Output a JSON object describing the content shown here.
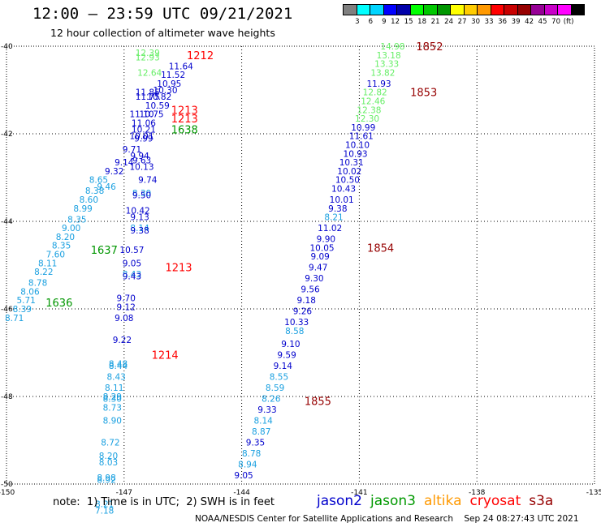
{
  "header": {
    "title": "12:00 — 23:59 UTC 09/21/2021",
    "subtitle": "12 hour collection of altimeter wave heights"
  },
  "color_scale": {
    "colors": [
      "#808080",
      "#00ffff",
      "#00d5ff",
      "#0000ff",
      "#0000aa",
      "#00ff00",
      "#00c800",
      "#009600",
      "#ffff00",
      "#ffcc00",
      "#ff9900",
      "#ff0000",
      "#c80000",
      "#960000",
      "#960096",
      "#c800c8",
      "#ff00ff",
      "#000000"
    ],
    "ticks": [
      "3",
      "6",
      "9",
      "12",
      "15",
      "18",
      "21",
      "24",
      "27",
      "30",
      "33",
      "36",
      "39",
      "42",
      "45",
      "70",
      "(ft)"
    ]
  },
  "footer": {
    "note": "note:  1) Time is in UTC;  2) SWH is in feet",
    "credit": "NOAA/NESDIS Center for Satellite Applications and Research    Sep 24 08:27:43 UTC 2021"
  },
  "satellites": [
    {
      "name": "jason2",
      "color": "#0000cc"
    },
    {
      "name": "jason3",
      "color": "#009900"
    },
    {
      "name": "altika",
      "color": "#ff9900"
    },
    {
      "name": "cryosat",
      "color": "#ff0000"
    },
    {
      "name": "s3a",
      "color": "#960000"
    }
  ],
  "chart_data": {
    "type": "scatter",
    "xlabel": "",
    "ylabel": "",
    "xlim": [
      -150,
      -135
    ],
    "ylim": [
      -50,
      -40
    ],
    "x_ticks": [
      "-150",
      "-147",
      "-144",
      "-141",
      "-138",
      "-135"
    ],
    "y_ticks": [
      "-40",
      "-42",
      "-44",
      "-46",
      "-48",
      "-50"
    ],
    "x_tick_values": [
      -150,
      -147,
      -144,
      -141,
      -138,
      -135
    ],
    "y_tick_values": [
      -40,
      -42,
      -44,
      -46,
      -48,
      -50
    ],
    "time_labels": [
      {
        "text": "1852",
        "lon": -139.55,
        "lat": -40.0,
        "color": "#960000"
      },
      {
        "text": "1853",
        "lon": -139.7,
        "lat": -41.05,
        "color": "#960000"
      },
      {
        "text": "1854",
        "lon": -140.8,
        "lat": -44.6,
        "color": "#960000"
      },
      {
        "text": "1855",
        "lon": -142.4,
        "lat": -48.1,
        "color": "#960000"
      },
      {
        "text": "1212",
        "lon": -145.4,
        "lat": -40.2,
        "color": "#ff0000"
      },
      {
        "text": "1213",
        "lon": -145.8,
        "lat": -41.45,
        "color": "#ff0000"
      },
      {
        "text": "1213",
        "lon": -145.8,
        "lat": -41.65,
        "color": "#ff0000"
      },
      {
        "text": "1213",
        "lon": -145.95,
        "lat": -45.05,
        "color": "#ff0000"
      },
      {
        "text": "1214",
        "lon": -146.3,
        "lat": -47.05,
        "color": "#ff0000"
      },
      {
        "text": "1638",
        "lon": -145.8,
        "lat": -41.9,
        "color": "#009600"
      },
      {
        "text": "1637",
        "lon": -147.85,
        "lat": -44.65,
        "color": "#009600"
      },
      {
        "text": "1636",
        "lon": -149.0,
        "lat": -45.85,
        "color": "#009600"
      }
    ],
    "series": [
      {
        "color_key": "track_east",
        "points": [
          {
            "label": "14.98",
            "lon": -140.15,
            "lat": -40.0,
            "color": "#66ee66"
          },
          {
            "label": "13.18",
            "lon": -140.25,
            "lat": -40.2,
            "color": "#66ee66"
          },
          {
            "label": "13.33",
            "lon": -140.3,
            "lat": -40.4,
            "color": "#66ee66"
          },
          {
            "label": "13.82",
            "lon": -140.4,
            "lat": -40.6,
            "color": "#66ee66"
          },
          {
            "label": "11.93",
            "lon": -140.5,
            "lat": -40.85,
            "color": "#0000cc"
          },
          {
            "label": "12.82",
            "lon": -140.6,
            "lat": -41.05,
            "color": "#66ee66"
          },
          {
            "label": "12.46",
            "lon": -140.65,
            "lat": -41.25,
            "color": "#66ee66"
          },
          {
            "label": "12.38",
            "lon": -140.75,
            "lat": -41.45,
            "color": "#66ee66"
          },
          {
            "label": "12.30",
            "lon": -140.8,
            "lat": -41.65,
            "color": "#66ee66"
          },
          {
            "label": "10.99",
            "lon": -140.9,
            "lat": -41.85,
            "color": "#0000cc"
          },
          {
            "label": "11.61",
            "lon": -140.95,
            "lat": -42.05,
            "color": "#0000cc"
          },
          {
            "label": "10.10",
            "lon": -141.05,
            "lat": -42.25,
            "color": "#0000cc"
          },
          {
            "label": "10.93",
            "lon": -141.1,
            "lat": -42.45,
            "color": "#0000cc"
          },
          {
            "label": "10.31",
            "lon": -141.2,
            "lat": -42.65,
            "color": "#0000cc"
          },
          {
            "label": "10.02",
            "lon": -141.25,
            "lat": -42.85,
            "color": "#0000cc"
          },
          {
            "label": "10.50",
            "lon": -141.3,
            "lat": -43.05,
            "color": "#0000cc"
          },
          {
            "label": "10.43",
            "lon": -141.4,
            "lat": -43.25,
            "color": "#0000cc"
          },
          {
            "label": "10.01",
            "lon": -141.45,
            "lat": -43.5,
            "color": "#0000cc"
          },
          {
            "label": "9.38",
            "lon": -141.55,
            "lat": -43.7,
            "color": "#0000cc"
          },
          {
            "label": "8.21",
            "lon": -141.65,
            "lat": -43.9,
            "color": "#1aa0e0"
          },
          {
            "label": "11.02",
            "lon": -141.75,
            "lat": -44.15,
            "color": "#0000cc"
          },
          {
            "label": "9.90",
            "lon": -141.85,
            "lat": -44.4,
            "color": "#0000cc"
          },
          {
            "label": "10.05",
            "lon": -141.95,
            "lat": -44.6,
            "color": "#0000cc"
          },
          {
            "label": "9.09",
            "lon": -142.0,
            "lat": -44.8,
            "color": "#0000cc"
          },
          {
            "label": "9.47",
            "lon": -142.05,
            "lat": -45.05,
            "color": "#0000cc"
          },
          {
            "label": "9.30",
            "lon": -142.15,
            "lat": -45.3,
            "color": "#0000cc"
          },
          {
            "label": "9.56",
            "lon": -142.25,
            "lat": -45.55,
            "color": "#0000cc"
          },
          {
            "label": "9.18",
            "lon": -142.35,
            "lat": -45.8,
            "color": "#0000cc"
          },
          {
            "label": "9.26",
            "lon": -142.45,
            "lat": -46.05,
            "color": "#0000cc"
          },
          {
            "label": "10.33",
            "lon": -142.6,
            "lat": -46.3,
            "color": "#0000cc"
          },
          {
            "label": "8.58",
            "lon": -142.65,
            "lat": -46.5,
            "color": "#1aa0e0"
          },
          {
            "label": "9.10",
            "lon": -142.75,
            "lat": -46.8,
            "color": "#0000cc"
          },
          {
            "label": "9.59",
            "lon": -142.85,
            "lat": -47.05,
            "color": "#0000cc"
          },
          {
            "label": "9.14",
            "lon": -142.95,
            "lat": -47.3,
            "color": "#0000cc"
          },
          {
            "label": "8.55",
            "lon": -143.05,
            "lat": -47.55,
            "color": "#1aa0e0"
          },
          {
            "label": "8.59",
            "lon": -143.15,
            "lat": -47.8,
            "color": "#1aa0e0"
          },
          {
            "label": "8.26",
            "lon": -143.25,
            "lat": -48.05,
            "color": "#1aa0e0"
          },
          {
            "label": "9.33",
            "lon": -143.35,
            "lat": -48.3,
            "color": "#0000cc"
          },
          {
            "label": "8.14",
            "lon": -143.45,
            "lat": -48.55,
            "color": "#1aa0e0"
          },
          {
            "label": "8.87",
            "lon": -143.5,
            "lat": -48.8,
            "color": "#1aa0e0"
          },
          {
            "label": "9.35",
            "lon": -143.65,
            "lat": -49.05,
            "color": "#0000cc"
          },
          {
            "label": "8.78",
            "lon": -143.75,
            "lat": -49.3,
            "color": "#1aa0e0"
          },
          {
            "label": "8.94",
            "lon": -143.85,
            "lat": -49.55,
            "color": "#1aa0e0"
          },
          {
            "label": "9.05",
            "lon": -143.95,
            "lat": -49.8,
            "color": "#0000cc"
          }
        ]
      },
      {
        "color_key": "track_middle",
        "points": [
          {
            "label": "12.39",
            "lon": -146.4,
            "lat": -40.15,
            "color": "#66ee66"
          },
          {
            "label": "12.93",
            "lon": -146.4,
            "lat": -40.25,
            "color": "#66ee66"
          },
          {
            "label": "11.64",
            "lon": -145.55,
            "lat": -40.45,
            "color": "#0000cc"
          },
          {
            "label": "12.64",
            "lon": -146.35,
            "lat": -40.6,
            "color": "#66ee66"
          },
          {
            "label": "11.52",
            "lon": -145.75,
            "lat": -40.65,
            "color": "#0000cc"
          },
          {
            "label": "10.95",
            "lon": -145.85,
            "lat": -40.85,
            "color": "#0000cc"
          },
          {
            "label": "10.30",
            "lon": -145.95,
            "lat": -41.0,
            "color": "#0000cc"
          },
          {
            "label": "11.85",
            "lon": -146.4,
            "lat": -41.05,
            "color": "#0000cc"
          },
          {
            "label": "11.75",
            "lon": -146.4,
            "lat": -41.15,
            "color": "#0000cc"
          },
          {
            "label": "10.82",
            "lon": -146.1,
            "lat": -41.15,
            "color": "#0000cc"
          },
          {
            "label": "10.59",
            "lon": -146.15,
            "lat": -41.35,
            "color": "#0000cc"
          },
          {
            "label": "11.10",
            "lon": -146.55,
            "lat": -41.55,
            "color": "#0000cc"
          },
          {
            "label": "10.75",
            "lon": -146.3,
            "lat": -41.55,
            "color": "#0000cc"
          },
          {
            "label": "11.06",
            "lon": -146.5,
            "lat": -41.75,
            "color": "#0000cc"
          },
          {
            "label": "10.21",
            "lon": -146.5,
            "lat": -41.9,
            "color": "#0000cc"
          },
          {
            "label": "10.01",
            "lon": -146.55,
            "lat": -42.05,
            "color": "#0000cc"
          },
          {
            "label": "9.99",
            "lon": -146.5,
            "lat": -42.1,
            "color": "#0000cc"
          },
          {
            "label": "9.71",
            "lon": -146.8,
            "lat": -42.35,
            "color": "#0000cc"
          },
          {
            "label": "9.94",
            "lon": -146.6,
            "lat": -42.5,
            "color": "#0000cc"
          },
          {
            "label": "9.14",
            "lon": -147.0,
            "lat": -42.65,
            "color": "#0000cc"
          },
          {
            "label": "9.63",
            "lon": -146.55,
            "lat": -42.6,
            "color": "#0000cc"
          },
          {
            "label": "10.13",
            "lon": -146.55,
            "lat": -42.75,
            "color": "#0000cc"
          },
          {
            "label": "9.32",
            "lon": -147.25,
            "lat": -42.85,
            "color": "#0000cc"
          },
          {
            "label": "9.74",
            "lon": -146.4,
            "lat": -43.05,
            "color": "#0000cc"
          },
          {
            "label": "8.30",
            "lon": -146.55,
            "lat": -43.35,
            "color": "#1aa0e0"
          },
          {
            "label": "9.50",
            "lon": -146.55,
            "lat": -43.4,
            "color": "#0000cc"
          },
          {
            "label": "10.42",
            "lon": -146.65,
            "lat": -43.75,
            "color": "#0000cc"
          },
          {
            "label": "9.13",
            "lon": -146.6,
            "lat": -43.9,
            "color": "#0000cc"
          },
          {
            "label": "8.14",
            "lon": -146.6,
            "lat": -44.15,
            "color": "#1aa0e0"
          },
          {
            "label": "9.38",
            "lon": -146.6,
            "lat": -44.2,
            "color": "#0000cc"
          },
          {
            "label": "10.57",
            "lon": -146.8,
            "lat": -44.65,
            "color": "#0000cc"
          },
          {
            "label": "9.05",
            "lon": -146.8,
            "lat": -44.95,
            "color": "#0000cc"
          },
          {
            "label": "8.43",
            "lon": -146.8,
            "lat": -45.2,
            "color": "#1aa0e0"
          },
          {
            "label": "9.43",
            "lon": -146.8,
            "lat": -45.25,
            "color": "#0000cc"
          },
          {
            "label": "9.70",
            "lon": -146.95,
            "lat": -45.75,
            "color": "#0000cc"
          },
          {
            "label": "9.12",
            "lon": -146.95,
            "lat": -45.95,
            "color": "#0000cc"
          },
          {
            "label": "9.08",
            "lon": -147.0,
            "lat": -46.2,
            "color": "#0000cc"
          },
          {
            "label": "9.22",
            "lon": -147.05,
            "lat": -46.7,
            "color": "#0000cc"
          },
          {
            "label": "8.48",
            "lon": -147.15,
            "lat": -47.25,
            "color": "#1aa0e0"
          },
          {
            "label": "8.44",
            "lon": -147.15,
            "lat": -47.3,
            "color": "#1aa0e0"
          },
          {
            "label": "8.43",
            "lon": -147.2,
            "lat": -47.55,
            "color": "#1aa0e0"
          },
          {
            "label": "8.11",
            "lon": -147.25,
            "lat": -47.8,
            "color": "#1aa0e0"
          },
          {
            "label": "8.29",
            "lon": -147.3,
            "lat": -48.0,
            "color": "#1aa0e0"
          },
          {
            "label": "8.30",
            "lon": -147.3,
            "lat": -48.05,
            "color": "#1aa0e0"
          },
          {
            "label": "8.73",
            "lon": -147.3,
            "lat": -48.25,
            "color": "#1aa0e0"
          },
          {
            "label": "8.90",
            "lon": -147.3,
            "lat": -48.55,
            "color": "#1aa0e0"
          },
          {
            "label": "8.72",
            "lon": -147.35,
            "lat": -49.05,
            "color": "#1aa0e0"
          },
          {
            "label": "8.20",
            "lon": -147.4,
            "lat": -49.35,
            "color": "#1aa0e0"
          },
          {
            "label": "8.03",
            "lon": -147.4,
            "lat": -49.5,
            "color": "#1aa0e0"
          },
          {
            "label": "8.98",
            "lon": -147.45,
            "lat": -49.85,
            "color": "#1aa0e0"
          },
          {
            "label": "8.92",
            "lon": -147.45,
            "lat": -49.9,
            "color": "#1aa0e0"
          },
          {
            "label": "8.21",
            "lon": -147.5,
            "lat": -50.45,
            "color": "#1aa0e0"
          },
          {
            "label": "7.18",
            "lon": -147.5,
            "lat": -50.6,
            "color": "#1aa0e0"
          }
        ]
      },
      {
        "color_key": "track_west",
        "points": [
          {
            "label": "9.46",
            "lon": -147.45,
            "lat": -43.2,
            "color": "#1aa0e0"
          },
          {
            "label": "8.65",
            "lon": -147.65,
            "lat": -43.05,
            "color": "#1aa0e0"
          },
          {
            "label": "8.38",
            "lon": -147.75,
            "lat": -43.3,
            "color": "#1aa0e0"
          },
          {
            "label": "8.60",
            "lon": -147.9,
            "lat": -43.5,
            "color": "#1aa0e0"
          },
          {
            "label": "8.99",
            "lon": -148.05,
            "lat": -43.7,
            "color": "#1aa0e0"
          },
          {
            "label": "8.35",
            "lon": -148.2,
            "lat": -43.95,
            "color": "#1aa0e0"
          },
          {
            "label": "9.00",
            "lon": -148.35,
            "lat": -44.15,
            "color": "#1aa0e0"
          },
          {
            "label": "8.20",
            "lon": -148.5,
            "lat": -44.35,
            "color": "#1aa0e0"
          },
          {
            "label": "8.35",
            "lon": -148.6,
            "lat": -44.55,
            "color": "#1aa0e0"
          },
          {
            "label": "7.60",
            "lon": -148.75,
            "lat": -44.75,
            "color": "#1aa0e0"
          },
          {
            "label": "8.11",
            "lon": -148.95,
            "lat": -44.95,
            "color": "#1aa0e0"
          },
          {
            "label": "8.22",
            "lon": -149.05,
            "lat": -45.15,
            "color": "#1aa0e0"
          },
          {
            "label": "8.78",
            "lon": -149.2,
            "lat": -45.4,
            "color": "#1aa0e0"
          },
          {
            "label": "8.06",
            "lon": -149.4,
            "lat": -45.6,
            "color": "#1aa0e0"
          },
          {
            "label": "5.71",
            "lon": -149.5,
            "lat": -45.8,
            "color": "#1aa0e0"
          },
          {
            "label": "8.39",
            "lon": -149.6,
            "lat": -46.0,
            "color": "#1aa0e0"
          },
          {
            "label": "8.71",
            "lon": -149.8,
            "lat": -46.2,
            "color": "#1aa0e0"
          }
        ]
      }
    ]
  }
}
